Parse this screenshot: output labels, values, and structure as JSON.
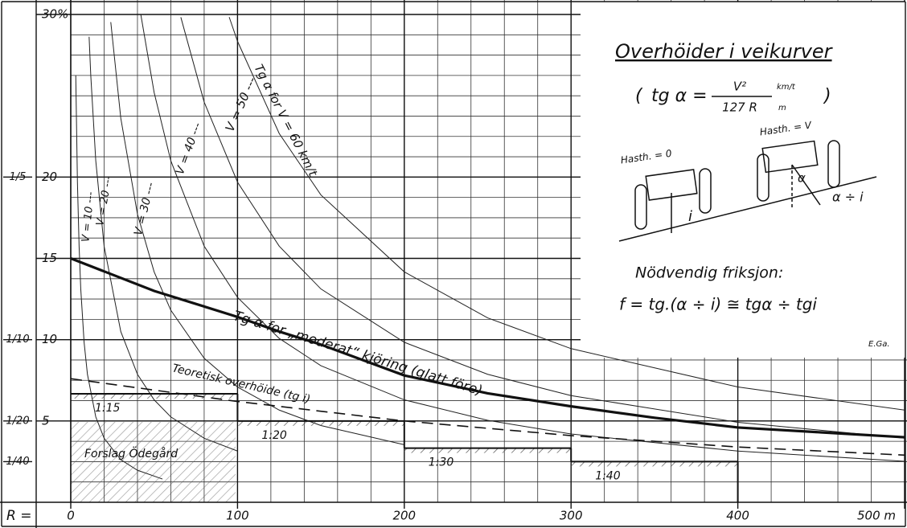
{
  "chart_data": {
    "type": "line",
    "title": "Overhöider i veikurver",
    "formula": {
      "lhs": "tg α =",
      "numerator": "V²",
      "denominator": "127 R",
      "unit_top": "km/t",
      "unit_bottom": "m"
    },
    "x_label": "R =",
    "xlim": [
      0,
      500
    ],
    "xticks": [
      0,
      100,
      200,
      300,
      400,
      {
        "value": 500,
        "label": "500 m"
      }
    ],
    "ylim": [
      0,
      30
    ],
    "yticks": [
      5,
      10,
      15,
      20,
      {
        "value": 30,
        "label": "30%"
      }
    ],
    "slope_ticks": [
      {
        "value": 20,
        "label": "1/5"
      },
      {
        "value": 10,
        "label": "1/10"
      },
      {
        "value": 5,
        "label": "1/20"
      },
      {
        "value": 2.5,
        "label": "1/40"
      }
    ],
    "grid": {
      "x_step": 20,
      "y_step": 1.25
    },
    "series": [
      {
        "name": "V = 10 ---",
        "color": "#222",
        "width": 1,
        "style": "solid",
        "x": [
          3,
          4,
          5,
          6,
          8,
          10,
          15,
          20,
          30,
          40,
          55
        ],
        "values": [
          26.25,
          19.69,
          15.75,
          13.12,
          9.84,
          7.87,
          5.25,
          3.94,
          2.62,
          1.97,
          1.43
        ]
      },
      {
        "name": "V = 20 ---",
        "color": "#222",
        "width": 1,
        "style": "solid",
        "x": [
          11,
          12,
          15,
          20,
          30,
          40,
          50,
          60,
          80,
          100
        ],
        "values": [
          28.63,
          26.25,
          21.0,
          15.75,
          10.5,
          7.87,
          6.3,
          5.25,
          3.94,
          3.15
        ]
      },
      {
        "name": "V = 30 ---",
        "color": "#222",
        "width": 1,
        "style": "solid",
        "x": [
          24,
          30,
          40,
          50,
          60,
          80,
          100,
          125,
          150,
          200
        ],
        "values": [
          29.53,
          23.62,
          17.72,
          14.17,
          11.81,
          8.86,
          7.09,
          5.67,
          4.72,
          3.54
        ]
      },
      {
        "name": "V = 40 ---",
        "color": "#222",
        "width": 1,
        "style": "solid",
        "x": [
          42,
          50,
          60,
          80,
          100,
          125,
          150,
          200,
          250,
          300,
          400,
          500
        ],
        "values": [
          30.0,
          25.2,
          21.0,
          15.75,
          12.6,
          10.08,
          8.4,
          6.3,
          5.04,
          4.2,
          3.15,
          2.52
        ]
      },
      {
        "name": "V = 50 ---",
        "color": "#222",
        "width": 1,
        "style": "solid",
        "x": [
          66,
          80,
          100,
          125,
          150,
          200,
          250,
          300,
          400,
          500
        ],
        "values": [
          29.83,
          24.61,
          19.69,
          15.75,
          13.12,
          9.84,
          7.87,
          6.56,
          4.92,
          3.94
        ]
      },
      {
        "name": "Tg α for V = 60 km/t",
        "color": "#222",
        "width": 1,
        "style": "solid",
        "x": [
          95,
          100,
          125,
          150,
          200,
          250,
          300,
          400,
          500
        ],
        "values": [
          29.84,
          28.35,
          22.68,
          18.9,
          14.17,
          11.34,
          9.45,
          7.09,
          5.67
        ]
      },
      {
        "name": "Tg α for „moderat“ kjöring (glatt före)",
        "color": "#111",
        "width": 3.2,
        "style": "solid",
        "x": [
          0,
          20,
          50,
          100,
          125,
          150,
          200,
          250,
          300,
          350,
          400,
          450,
          500
        ],
        "values": [
          15,
          14.2,
          13.0,
          11.4,
          10.5,
          9.7,
          7.8,
          6.7,
          5.9,
          5.2,
          4.6,
          4.3,
          4.0
        ]
      },
      {
        "name": "Teoretisk overhöide (tg i)",
        "color": "#111",
        "width": 1.6,
        "style": "dashed",
        "x": [
          0,
          100,
          200,
          300,
          400,
          500
        ],
        "values": [
          7.6,
          6.2,
          5.0,
          4.1,
          3.4,
          2.9
        ]
      }
    ],
    "steps": [
      {
        "label": "1:15",
        "from": 0,
        "to": 100,
        "value": 6.67
      },
      {
        "label": "1:20",
        "from": 100,
        "to": 200,
        "value": 5
      },
      {
        "label": "1:30",
        "from": 200,
        "to": 300,
        "value": 3.33
      },
      {
        "label": "1:40",
        "from": 300,
        "to": 400,
        "value": 2.5
      }
    ],
    "annotations": {
      "proposal": "Forslag Ödegård",
      "speed_zero": "Hasth. = 0",
      "speed_v": "Hasth. = V",
      "angle_i": "i",
      "angle_alpha": "α",
      "angle_diff": "α ÷ i",
      "friction_title": "Nödvendig friksjon:",
      "friction_formula": "f = tg.(α ÷ i) ≅ tgα ÷ tgi",
      "signature": "E.Ga."
    }
  }
}
